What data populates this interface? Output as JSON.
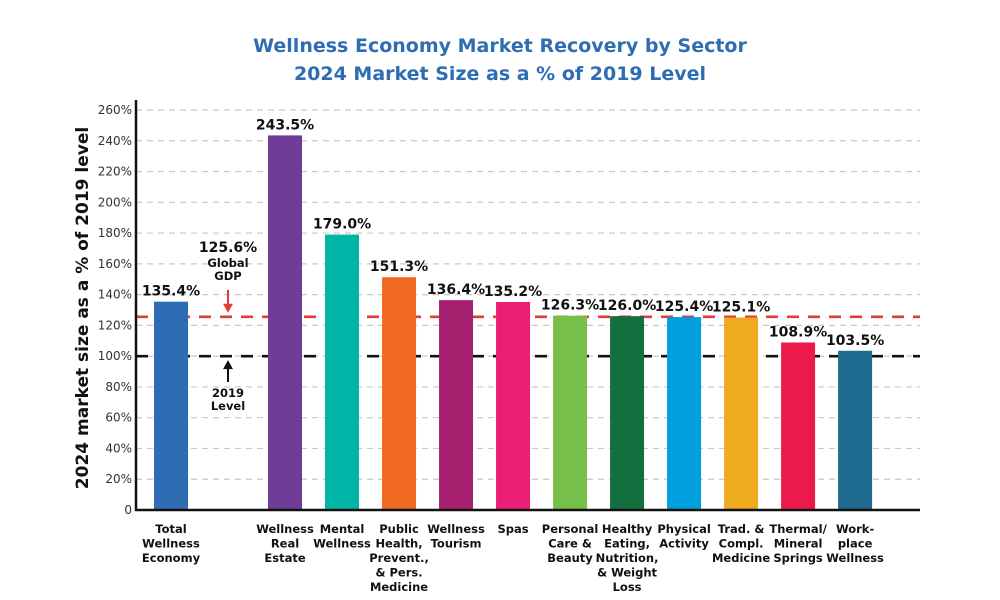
{
  "chart_data": {
    "type": "bar",
    "title": "Wellness Economy Market Recovery by Sector",
    "subtitle": "2024 Market Size as a % of 2019 Level",
    "xlabel": "",
    "ylabel": "2024 market size as a % of 2019 level",
    "ylim": [
      0,
      260
    ],
    "yticks": [
      0,
      20,
      40,
      60,
      80,
      100,
      120,
      140,
      160,
      180,
      200,
      220,
      240,
      260
    ],
    "ytick_labels": [
      "0",
      "20%",
      "40%",
      "60%",
      "80%",
      "100%",
      "120%",
      "140%",
      "160%",
      "180%",
      "200%",
      "220%",
      "240%",
      "260%"
    ],
    "grid": true,
    "categories": [
      "Total Wellness Economy",
      "Wellness Real Estate",
      "Mental Wellness",
      "Public Health, Prevent., & Pers. Medicine",
      "Wellness Tourism",
      "Spas",
      "Personal Care & Beauty",
      "Healthy Eating, Nutrition, & Weight Loss",
      "Physical Activity",
      "Trad. & Compl. Medicine",
      "Thermal/ Mineral Springs",
      "Work- place Wellness"
    ],
    "category_lines": [
      [
        "Total",
        "Wellness",
        "Economy"
      ],
      [
        "Wellness",
        "Real",
        "Estate"
      ],
      [
        "Mental",
        "Wellness"
      ],
      [
        "Public",
        "Health,",
        "Prevent.,",
        "& Pers.",
        "Medicine"
      ],
      [
        "Wellness",
        "Tourism"
      ],
      [
        "Spas"
      ],
      [
        "Personal",
        "Care &",
        "Beauty"
      ],
      [
        "Healthy",
        "Eating,",
        "Nutrition,",
        "& Weight",
        "Loss"
      ],
      [
        "Physical",
        "Activity"
      ],
      [
        "Trad. &",
        "Compl.",
        "Medicine"
      ],
      [
        "Thermal/",
        "Mineral",
        "Springs"
      ],
      [
        "Work-",
        "place",
        "Wellness"
      ]
    ],
    "values": [
      135.4,
      243.5,
      179.0,
      151.3,
      136.4,
      135.2,
      126.3,
      126.0,
      125.4,
      125.1,
      108.9,
      103.5
    ],
    "value_labels": [
      "135.4%",
      "243.5%",
      "179.0%",
      "151.3%",
      "136.4%",
      "135.2%",
      "126.3%",
      "126.0%",
      "125.4%",
      "125.1%",
      "108.9%",
      "103.5%"
    ],
    "colors": [
      "#2e6db4",
      "#6f3d97",
      "#00b5a6",
      "#f26a21",
      "#a7206f",
      "#ec1f77",
      "#76bf4a",
      "#136f3d",
      "#00a0df",
      "#efab20",
      "#ec1a4b",
      "#1f6a8f"
    ],
    "reference_lines": [
      {
        "name": "Global GDP",
        "value": 125.6,
        "color": "#e53a35",
        "label_value": "125.6%",
        "label_lines": [
          "Global",
          "GDP"
        ]
      },
      {
        "name": "2019 Level",
        "value": 100,
        "color": "#111111",
        "label_lines": [
          "2019",
          "Level"
        ]
      }
    ]
  }
}
